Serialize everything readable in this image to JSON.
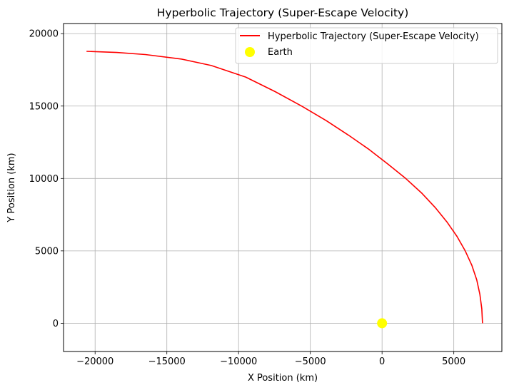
{
  "chart_data": {
    "type": "line",
    "title": "Hyperbolic Trajectory (Super-Escape Velocity)",
    "xlabel": "X Position (km)",
    "ylabel": "Y Position (km)",
    "xlim": [
      -22200,
      8350
    ],
    "ylim": [
      -1950,
      20700
    ],
    "xticks": [
      -20000,
      -15000,
      -10000,
      -5000,
      0,
      5000
    ],
    "xtick_labels": [
      "−20000",
      "−15000",
      "−10000",
      "−5000",
      "0",
      "5000"
    ],
    "yticks": [
      0,
      5000,
      10000,
      15000,
      20000
    ],
    "ytick_labels": [
      "0",
      "5000",
      "10000",
      "15000",
      "20000"
    ],
    "grid": true,
    "legend_position": "top-right",
    "series": [
      {
        "name": "Hyperbolic Trajectory (Super-Escape Velocity)",
        "kind": "line",
        "color": "#ff0000",
        "points": [
          [
            7000,
            0
          ],
          [
            6950,
            1000
          ],
          [
            6820,
            2000
          ],
          [
            6600,
            3000
          ],
          [
            6260,
            4000
          ],
          [
            5800,
            5000
          ],
          [
            5220,
            6000
          ],
          [
            4520,
            7000
          ],
          [
            3700,
            8000
          ],
          [
            2750,
            9000
          ],
          [
            1650,
            10000
          ],
          [
            400,
            11000
          ],
          [
            -900,
            12000
          ],
          [
            -2350,
            13000
          ],
          [
            -3900,
            14000
          ],
          [
            -5600,
            15000
          ],
          [
            -7450,
            16000
          ],
          [
            -9500,
            17000
          ],
          [
            -11900,
            17800
          ],
          [
            -14000,
            18250
          ],
          [
            -16500,
            18560
          ],
          [
            -18500,
            18700
          ],
          [
            -20600,
            18780
          ]
        ]
      },
      {
        "name": "Earth",
        "kind": "scatter",
        "color": "#ffff00",
        "points": [
          [
            0,
            0
          ]
        ]
      }
    ]
  }
}
